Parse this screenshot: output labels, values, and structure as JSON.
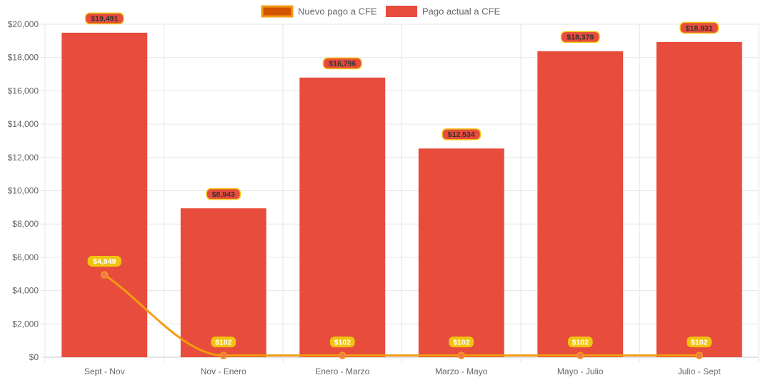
{
  "chart_data": {
    "type": "bar",
    "categories": [
      "Sept - Nov",
      "Nov - Enero",
      "Enero - Marzo",
      "Marzo - Mayo",
      "Mayo - Julio",
      "Julio - Sept"
    ],
    "series": [
      {
        "name": "Nuevo pago a CFE",
        "type": "line",
        "values": [
          4949,
          102,
          102,
          102,
          102,
          102
        ],
        "labels": [
          "$4,949",
          "$102",
          "$102",
          "$102",
          "$102",
          "$102"
        ],
        "color": "#f39c12",
        "legend_fill": "#d35400",
        "label_bg": "#f1c40f",
        "label_text_color": "#ffffff"
      },
      {
        "name": "Pago actual a CFE",
        "type": "bar",
        "values": [
          19491,
          8943,
          16796,
          12534,
          18378,
          18931
        ],
        "labels": [
          "$19,491",
          "$8,943",
          "$16,796",
          "$12,534",
          "$18,378",
          "$18,931"
        ],
        "color": "#e74c3c",
        "label_bg": "#e74c3c",
        "label_border": "#f1c40f",
        "label_text_color": "#333333"
      }
    ],
    "y_ticks": [
      "$0",
      "$2,000",
      "$4,000",
      "$6,000",
      "$8,000",
      "$10,000",
      "$12,000",
      "$14,000",
      "$16,000",
      "$18,000",
      "$20,000"
    ],
    "ylim": [
      0,
      20000
    ],
    "grid": true,
    "legend_position": "top-center",
    "title": "",
    "xlabel": "",
    "ylabel": ""
  }
}
